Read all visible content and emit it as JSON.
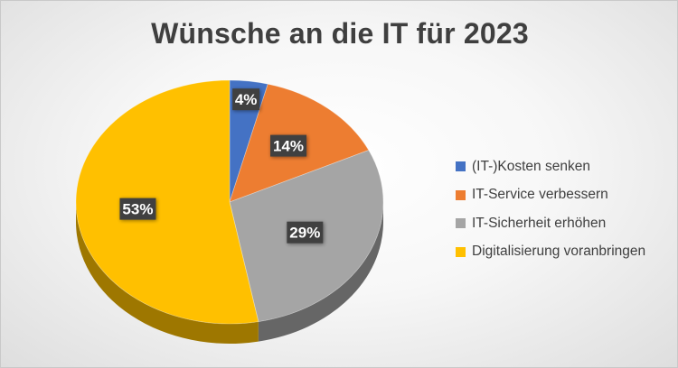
{
  "chart_data": {
    "type": "pie",
    "title": "Wünsche an die IT für 2023",
    "categories": [
      "(IT-)Kosten senken",
      "IT-Service verbessern",
      "IT-Sicherheit erhöhen",
      "Digitalisierung voranbringen"
    ],
    "values": [
      4,
      14,
      29,
      53
    ],
    "value_labels": [
      "4%",
      "14%",
      "29%",
      "53%"
    ],
    "unit": "%",
    "colors": [
      "#4472C4",
      "#ED7D31",
      "#A5A5A5",
      "#FFC000"
    ],
    "style": "3d",
    "legend_position": "right",
    "data_label_style": "dark box, white bold text"
  }
}
